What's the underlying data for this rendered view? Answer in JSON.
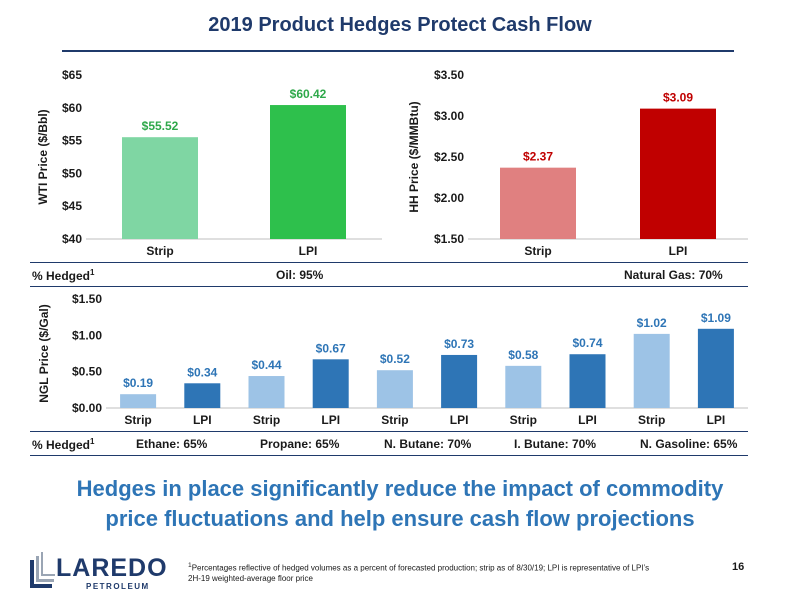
{
  "title": "2019 Product Hedges Protect Cash Flow",
  "chart_data": [
    {
      "type": "bar",
      "ylabel": "WTI Price ($/Bbl)",
      "categories": [
        "Strip",
        "LPI"
      ],
      "values": [
        55.52,
        60.42
      ],
      "value_labels": [
        "$55.52",
        "$60.42"
      ],
      "ylim": [
        40,
        65
      ],
      "yticks": [
        40,
        45,
        50,
        55,
        60,
        65
      ],
      "ytick_labels": [
        "$40",
        "$45",
        "$50",
        "$55",
        "$60",
        "$65"
      ],
      "bar_colors": [
        "#7fd6a3",
        "#2ec04c"
      ],
      "label_color": "#2ea84a"
    },
    {
      "type": "bar",
      "ylabel": "HH Price ($/MMBtu)",
      "categories": [
        "Strip",
        "LPI"
      ],
      "values": [
        2.37,
        3.09
      ],
      "value_labels": [
        "$2.37",
        "$3.09"
      ],
      "ylim": [
        1.5,
        3.5
      ],
      "yticks": [
        1.5,
        2.0,
        2.5,
        3.0,
        3.5
      ],
      "ytick_labels": [
        "$1.50",
        "$2.00",
        "$2.50",
        "$3.00",
        "$3.50"
      ],
      "bar_colors": [
        "#e08080",
        "#c00000"
      ],
      "label_color": "#c00000"
    },
    {
      "type": "bar",
      "ylabel": "NGL Price ($/Gal)",
      "categories": [
        "Strip",
        "LPI",
        "Strip",
        "LPI",
        "Strip",
        "LPI",
        "Strip",
        "LPI",
        "Strip",
        "LPI"
      ],
      "values": [
        0.19,
        0.34,
        0.44,
        0.67,
        0.52,
        0.73,
        0.58,
        0.74,
        1.02,
        1.09
      ],
      "value_labels": [
        "$0.19",
        "$0.34",
        "$0.44",
        "$0.67",
        "$0.52",
        "$0.73",
        "$0.58",
        "$0.74",
        "$1.02",
        "$1.09"
      ],
      "ylim": [
        0,
        1.5
      ],
      "yticks": [
        0,
        0.5,
        1.0,
        1.5
      ],
      "ytick_labels": [
        "$0.00",
        "$0.50",
        "$1.00",
        "$1.50"
      ],
      "bar_colors": [
        "#9dc3e6",
        "#2e75b6"
      ],
      "label_color": "#2e75b6"
    }
  ],
  "hedged": {
    "label": "% Hedged",
    "footnote_mark": "1",
    "oil": "Oil: 95%",
    "gas": "Natural Gas: 70%",
    "ngl": [
      "Ethane: 65%",
      "Propane: 65%",
      "N. Butane: 70%",
      "I. Butane: 70%",
      "N. Gasoline: 65%"
    ]
  },
  "tagline": {
    "line1": "Hedges in place significantly reduce the impact of commodity",
    "line2": "price fluctuations and help ensure cash flow projections"
  },
  "logo": {
    "name": "LAREDO",
    "sub": "PETROLEUM",
    "primary_color": "#1f3a6b",
    "accent_color": "#9aa5b4"
  },
  "footnote": {
    "mark": "1",
    "line1": "Percentages reflective of hedged volumes as a percent of forecasted production; strip as of 8/30/19; LPI is representative of LPI’s",
    "line2": "2H-19 weighted-average floor price"
  },
  "page_number": "16"
}
